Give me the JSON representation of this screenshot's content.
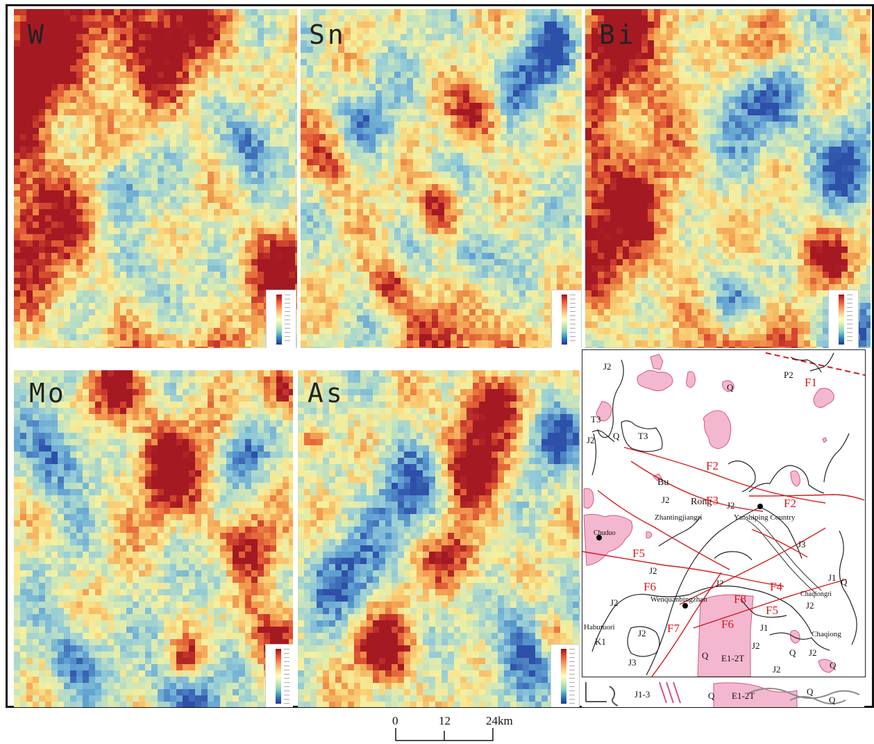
{
  "panels": [
    {
      "id": "w",
      "label": "W",
      "seed": 11,
      "hot": [
        [
          0.1,
          0.02,
          0.26
        ],
        [
          0.55,
          0.05,
          0.22
        ],
        [
          0.03,
          0.62,
          0.24
        ],
        [
          0.92,
          0.75,
          0.14
        ],
        [
          0.55,
          1.0,
          0.18
        ],
        [
          0.0,
          0.22,
          0.14
        ]
      ],
      "cold": [
        [
          0.52,
          0.86,
          0.14
        ],
        [
          0.82,
          0.38,
          0.1
        ],
        [
          0.36,
          0.5,
          0.08
        ]
      ]
    },
    {
      "id": "sn",
      "label": "Sn",
      "seed": 23,
      "hot": [
        [
          0.48,
          0.58,
          0.08
        ],
        [
          0.56,
          1.05,
          0.19
        ],
        [
          0.3,
          0.8,
          0.07
        ],
        [
          0.62,
          0.3,
          0.09
        ],
        [
          0.12,
          0.42,
          0.12
        ]
      ],
      "cold": [
        [
          0.2,
          0.35,
          0.12
        ],
        [
          0.8,
          0.22,
          0.1
        ],
        [
          0.9,
          0.1,
          0.08
        ],
        [
          0.6,
          0.72,
          0.08
        ]
      ]
    },
    {
      "id": "bi",
      "label": "Bi",
      "seed": 37,
      "hot": [
        [
          0.12,
          0.08,
          0.22
        ],
        [
          0.05,
          0.6,
          0.26
        ],
        [
          0.55,
          1.02,
          0.16
        ],
        [
          0.82,
          0.72,
          0.1
        ],
        [
          0.62,
          0.12,
          0.1
        ]
      ],
      "cold": [
        [
          0.6,
          0.25,
          0.16
        ],
        [
          0.9,
          0.45,
          0.12
        ],
        [
          0.92,
          0.92,
          0.12
        ],
        [
          0.5,
          0.85,
          0.1
        ]
      ]
    },
    {
      "id": "mo",
      "label": "Mo",
      "seed": 53,
      "hot": [
        [
          0.55,
          0.28,
          0.16
        ],
        [
          0.82,
          0.55,
          0.12
        ],
        [
          0.92,
          0.78,
          0.1
        ],
        [
          0.35,
          0.05,
          0.1
        ],
        [
          0.95,
          0.05,
          0.08
        ],
        [
          0.6,
          0.85,
          0.06
        ]
      ],
      "cold": [
        [
          0.15,
          0.25,
          0.12
        ],
        [
          0.6,
          0.95,
          0.12
        ],
        [
          0.2,
          0.85,
          0.1
        ],
        [
          0.75,
          0.6,
          0.08
        ],
        [
          0.82,
          0.25,
          0.08
        ]
      ]
    },
    {
      "id": "as",
      "label": "As",
      "seed": 71,
      "hot": [
        [
          0.6,
          0.28,
          0.15
        ],
        [
          0.3,
          0.82,
          0.12
        ],
        [
          0.55,
          0.55,
          0.1
        ],
        [
          0.65,
          0.1,
          0.1
        ],
        [
          0.05,
          0.2,
          0.05
        ],
        [
          0.9,
          0.78,
          0.07
        ]
      ],
      "cold": [
        [
          0.4,
          0.35,
          0.15
        ],
        [
          0.8,
          0.8,
          0.14
        ],
        [
          0.15,
          0.6,
          0.12
        ],
        [
          0.9,
          0.2,
          0.1
        ]
      ]
    }
  ],
  "geology": {
    "units": [
      "J2",
      "Q",
      "P2",
      "T3",
      "J2",
      "Q",
      "T3",
      "J2",
      "J2",
      "J3",
      "J2",
      "J2",
      "J1",
      "Q",
      "J2",
      "J2",
      "K1",
      "J2",
      "J3",
      "J1",
      "J2",
      "Q",
      "E1-2T",
      "Q",
      "J2",
      "Q",
      "J2"
    ],
    "places": [
      "Bu",
      "Rong",
      "Zhantingjiangri",
      "Yanshiping Country",
      "Chuduo",
      "Wenquanbingzhan",
      "Habutuori",
      "Chaqiongri",
      "Chaqiong"
    ],
    "faults": [
      "F1",
      "F2",
      "F2",
      "F3",
      "F4",
      "F5",
      "F5",
      "F6",
      "F6",
      "F7",
      "F8"
    ]
  },
  "legend_strip": [
    "J1-3",
    "Q",
    "E1-2T",
    "Q",
    "Q"
  ],
  "scalebar": {
    "ticks": [
      "0",
      "12",
      "24km"
    ]
  },
  "colors": {
    "high": "#b2182b",
    "mid": "#f7f5a8",
    "low": "#2d5ca8",
    "granite_fill": "#f3b8cf",
    "granite_stroke": "#d6567f",
    "fault": "#d7191c"
  }
}
